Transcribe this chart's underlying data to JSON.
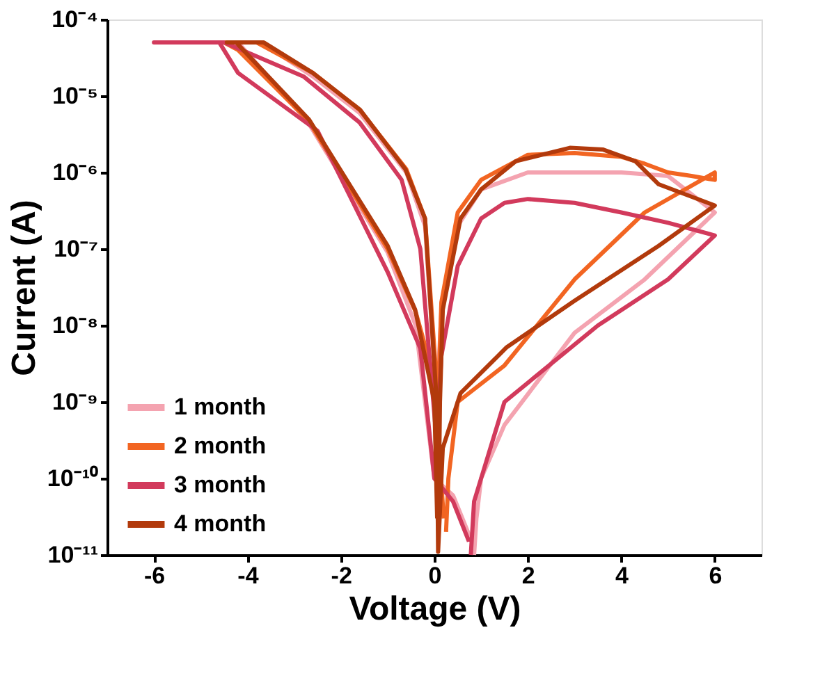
{
  "chart_data": {
    "type": "line",
    "xlabel": "Voltage (V)",
    "ylabel": "Current (A)",
    "log": "y",
    "xlim": [
      -7,
      7
    ],
    "xticks": [
      -6,
      -4,
      -2,
      0,
      2,
      4,
      6
    ],
    "ylim": [
      1e-11,
      0.0001
    ],
    "yticks": [
      {
        "value": 1e-11,
        "label": "10⁻¹¹"
      },
      {
        "value": 1e-10,
        "label": "10⁻¹⁰"
      },
      {
        "value": 1e-09,
        "label": "10⁻⁹"
      },
      {
        "value": 1e-08,
        "label": "10⁻⁸"
      },
      {
        "value": 1e-07,
        "label": "10⁻⁷"
      },
      {
        "value": 1e-06,
        "label": "10⁻⁶"
      },
      {
        "value": 1e-05,
        "label": "10⁻⁵"
      },
      {
        "value": 0.0001,
        "label": "10⁻⁴"
      }
    ],
    "legend": "bottom left",
    "grid": false,
    "line_style": "solid",
    "marker": "none",
    "series": [
      {
        "name": "1 month",
        "color": "#f4a3b0",
        "x": [
          0.85,
          0.9,
          1.0,
          1.5,
          3.0,
          4.5,
          6.0,
          5.0,
          4.0,
          3.0,
          2.0,
          1.0,
          0.5,
          0.15,
          0.05,
          -0.2,
          -0.6,
          -1.6,
          -2.6,
          -3.7,
          -4.4,
          -4.2,
          -2.7,
          -1.0,
          -0.4,
          0.0,
          0.4,
          0.8
        ],
        "values": [
          1e-11,
          3e-11,
          1e-10,
          5e-10,
          8e-09,
          4e-08,
          3e-07,
          9e-07,
          1e-06,
          1e-06,
          1e-06,
          6e-07,
          2e-07,
          1.5e-08,
          1e-09,
          2e-07,
          1e-06,
          6e-06,
          1.8e-05,
          5e-05,
          5e-05,
          5e-05,
          4.5e-06,
          9e-08,
          1e-08,
          1e-10,
          6e-11,
          1.5e-11
        ]
      },
      {
        "name": "2 month",
        "color": "#f26522",
        "x": [
          0.25,
          0.3,
          0.5,
          1.5,
          3.0,
          4.5,
          6.0,
          6.0,
          5.5,
          5.0,
          4.5,
          4.0,
          3.0,
          2.0,
          1.0,
          0.5,
          0.15,
          0.08,
          -0.2,
          -0.6,
          -1.6,
          -2.6,
          -3.8,
          -4.5,
          -4.2,
          -2.7,
          -1.0,
          -0.4,
          0.0,
          0.2
        ],
        "values": [
          2e-11,
          1e-10,
          1e-09,
          3e-09,
          4e-08,
          3e-07,
          1e-06,
          8e-07,
          9e-07,
          1e-06,
          1.3e-06,
          1.6e-06,
          1.8e-06,
          1.7e-06,
          8e-07,
          3e-07,
          2e-08,
          1e-09,
          2.5e-07,
          1.1e-06,
          6.6e-06,
          2e-05,
          5e-05,
          5e-05,
          4e-05,
          4.8e-06,
          1e-07,
          1.5e-08,
          2e-09,
          3e-11
        ]
      },
      {
        "name": "3 month",
        "color": "#d23a5c",
        "x": [
          0.78,
          0.85,
          1.0,
          1.5,
          3.5,
          5.0,
          6.0,
          5.0,
          4.0,
          3.0,
          2.0,
          1.5,
          1.0,
          0.5,
          0.15,
          0.05,
          -0.3,
          -0.7,
          -1.6,
          -2.8,
          -4.5,
          -6.0,
          -4.6,
          -4.2,
          -2.5,
          -1.0,
          -0.3,
          0.0,
          0.4,
          0.74
        ],
        "values": [
          1e-11,
          5e-11,
          1e-10,
          1e-09,
          1e-08,
          4e-08,
          1.5e-07,
          2.2e-07,
          3e-07,
          4e-07,
          4.5e-07,
          4e-07,
          2.5e-07,
          6e-08,
          4e-09,
          3e-10,
          1e-07,
          8e-07,
          4.5e-06,
          1.8e-05,
          5e-05,
          5e-05,
          5e-05,
          2e-05,
          3.5e-06,
          5e-08,
          5e-09,
          1e-10,
          5e-11,
          1.5e-11
        ]
      },
      {
        "name": "4 month",
        "color": "#b23a0c",
        "x": [
          0.08,
          0.12,
          0.18,
          0.56,
          1.0,
          1.74,
          2.9,
          3.6,
          4.3,
          4.8,
          6.0,
          4.8,
          3.0,
          1.55,
          0.56,
          0.18,
          0.08,
          0.05,
          -0.2,
          -0.62,
          -1.59,
          -2.6,
          -3.65,
          -4.44,
          -4.24,
          -2.68,
          -1.0,
          -0.41,
          0.0,
          0.06
        ],
        "values": [
          1.1e-11,
          1e-09,
          1.6e-08,
          2.5e-07,
          6e-07,
          1.4e-06,
          2.1e-06,
          2e-06,
          1.4e-06,
          7e-07,
          3.7e-07,
          1.1e-07,
          2.1e-08,
          5.2e-09,
          1.3e-09,
          2.5e-10,
          1.1e-11,
          1e-09,
          2.5e-07,
          1.1e-06,
          6.6e-06,
          2e-05,
          5e-05,
          5e-05,
          5e-05,
          4.9e-06,
          1.1e-07,
          1.6e-08,
          1e-09,
          3e-11
        ]
      }
    ]
  }
}
